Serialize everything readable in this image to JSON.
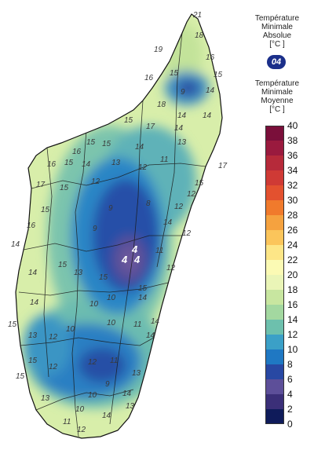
{
  "legend": {
    "absolute_title": [
      "Température",
      "Minimale",
      "Absolue",
      "[°C ]"
    ],
    "absolute_badge": "04",
    "mean_title": [
      "Température",
      "Minimale",
      "Moyenne",
      "[°C ]"
    ],
    "ticks": [
      "40",
      "38",
      "36",
      "34",
      "32",
      "30",
      "28",
      "26",
      "24",
      "22",
      "20",
      "18",
      "16",
      "14",
      "12",
      "10",
      "8",
      "6",
      "4",
      "2",
      "0"
    ],
    "colors": [
      "#7a0f3a",
      "#9a1a3e",
      "#b62a3a",
      "#cf3a35",
      "#e3512f",
      "#f07a2c",
      "#f5a23f",
      "#fbc55b",
      "#fde687",
      "#fbfab4",
      "#eaf5b7",
      "#c8e6a0",
      "#a3d8a0",
      "#6dc0ad",
      "#3ba0c7",
      "#1f78c3",
      "#2848a3",
      "#5d4f99",
      "#3b2f78",
      "#0f1b5a"
    ]
  },
  "labels": [
    {
      "t": "21",
      "c": "n"
    },
    {
      "t": "18",
      "c": "n"
    },
    {
      "t": "19",
      "c": "n"
    },
    {
      "t": "16",
      "c": "n"
    },
    {
      "t": "15",
      "c": "n"
    },
    {
      "t": "16",
      "c": "n"
    },
    {
      "t": "15",
      "c": "n"
    },
    {
      "t": "14",
      "c": "n"
    },
    {
      "t": "9",
      "c": "n"
    },
    {
      "t": "18",
      "c": "n"
    },
    {
      "t": "14",
      "c": "n"
    },
    {
      "t": "14",
      "c": "n"
    },
    {
      "t": "15",
      "c": "n"
    },
    {
      "t": "17",
      "c": "n"
    },
    {
      "t": "14",
      "c": "n"
    },
    {
      "t": "15",
      "c": "n"
    },
    {
      "t": "15",
      "c": "n"
    },
    {
      "t": "16",
      "c": "n"
    },
    {
      "t": "14",
      "c": "n"
    },
    {
      "t": "13",
      "c": "n"
    },
    {
      "t": "16",
      "c": "n"
    },
    {
      "t": "15",
      "c": "n"
    },
    {
      "t": "14",
      "c": "n"
    },
    {
      "t": "13",
      "c": "n"
    },
    {
      "t": "12",
      "c": "n"
    },
    {
      "t": "11",
      "c": "n"
    },
    {
      "t": "17",
      "c": "n"
    },
    {
      "t": "15",
      "c": "n"
    },
    {
      "t": "12",
      "c": "n"
    },
    {
      "t": "15",
      "c": "n"
    },
    {
      "t": "9",
      "c": "n"
    },
    {
      "t": "8",
      "c": "n"
    },
    {
      "t": "12",
      "c": "n"
    },
    {
      "t": "12",
      "c": "n"
    },
    {
      "t": "16",
      "c": "n"
    },
    {
      "t": "15",
      "c": "n"
    },
    {
      "t": "9",
      "c": "n"
    },
    {
      "t": "12",
      "c": "n"
    },
    {
      "t": "14",
      "c": "n"
    },
    {
      "t": "14",
      "c": "n"
    },
    {
      "t": "15",
      "c": "n"
    },
    {
      "t": "13",
      "c": "n"
    },
    {
      "t": "15",
      "c": "n"
    },
    {
      "t": "11",
      "c": "n"
    },
    {
      "t": "12",
      "c": "n"
    },
    {
      "t": "14",
      "c": "n"
    },
    {
      "t": "10",
      "c": "n"
    },
    {
      "t": "10",
      "c": "n"
    },
    {
      "t": "11",
      "c": "n"
    },
    {
      "t": "14",
      "c": "n"
    },
    {
      "t": "10",
      "c": "n"
    },
    {
      "t": "10",
      "c": "n"
    },
    {
      "t": "15",
      "c": "n"
    },
    {
      "t": "13",
      "c": "n"
    },
    {
      "t": "12",
      "c": "n"
    },
    {
      "t": "14",
      "c": "n"
    },
    {
      "t": "15",
      "c": "n"
    },
    {
      "t": "12",
      "c": "n"
    },
    {
      "t": "12",
      "c": "n"
    },
    {
      "t": "11",
      "c": "n"
    },
    {
      "t": "13",
      "c": "n"
    },
    {
      "t": "14",
      "c": "n"
    },
    {
      "t": "10",
      "c": "n"
    },
    {
      "t": "9",
      "c": "n"
    },
    {
      "t": "15",
      "c": "n"
    },
    {
      "t": "10",
      "c": "n"
    },
    {
      "t": "14",
      "c": "n"
    },
    {
      "t": "13",
      "c": "n"
    },
    {
      "t": "11",
      "c": "n"
    },
    {
      "t": "12",
      "c": "n"
    },
    {
      "t": "13",
      "c": "n"
    },
    {
      "t": "14",
      "c": "n"
    },
    {
      "t": "15",
      "c": "n"
    },
    {
      "t": "14",
      "c": "n"
    },
    {
      "t": "17",
      "c": "n"
    },
    {
      "t": "4",
      "c": "a"
    },
    {
      "t": "4",
      "c": "a"
    },
    {
      "t": "4",
      "c": "a"
    }
  ]
}
